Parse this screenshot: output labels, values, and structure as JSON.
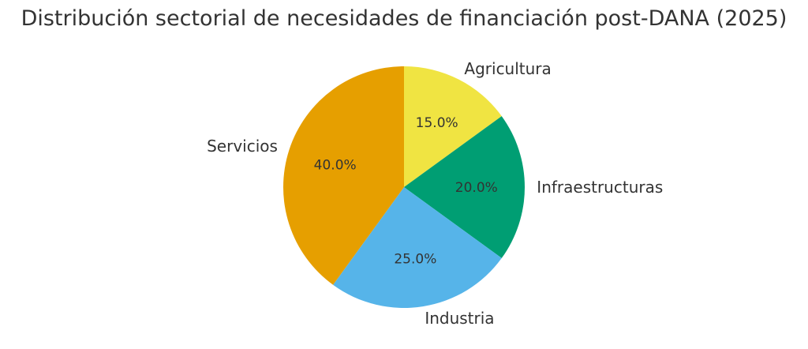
{
  "chart_data": {
    "type": "pie",
    "title": "Distribución sectorial de necesidades de financiación post-DANA (2025)",
    "categories": [
      "Agricultura",
      "Infraestructuras",
      "Industria",
      "Servicios"
    ],
    "values": [
      15,
      20,
      25,
      40
    ],
    "value_labels": [
      "15.0%",
      "20.0%",
      "25.0%",
      "40.0%"
    ],
    "colors": [
      "#f0e442",
      "#009e73",
      "#56b4e9",
      "#e69f00"
    ],
    "start_angle": "top",
    "direction": "clockwise"
  }
}
